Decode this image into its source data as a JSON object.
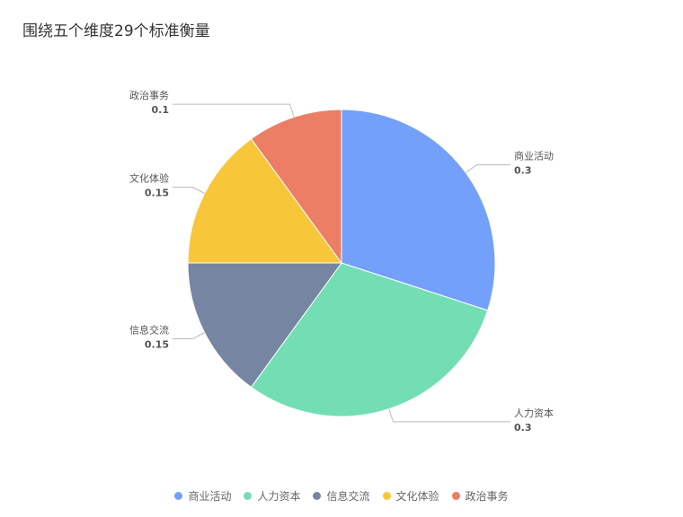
{
  "chart_data": {
    "type": "pie",
    "title": "围绕五个维度29个标准衡量",
    "categories": [
      "商业活动",
      "人力资本",
      "信息交流",
      "文化体验",
      "政治事务"
    ],
    "values": [
      0.3,
      0.3,
      0.15,
      0.15,
      0.1
    ],
    "colors": [
      "#73a0fa",
      "#73deb3",
      "#7585a2",
      "#f7c739",
      "#eb7e65"
    ],
    "legend_placement": "bottom"
  }
}
